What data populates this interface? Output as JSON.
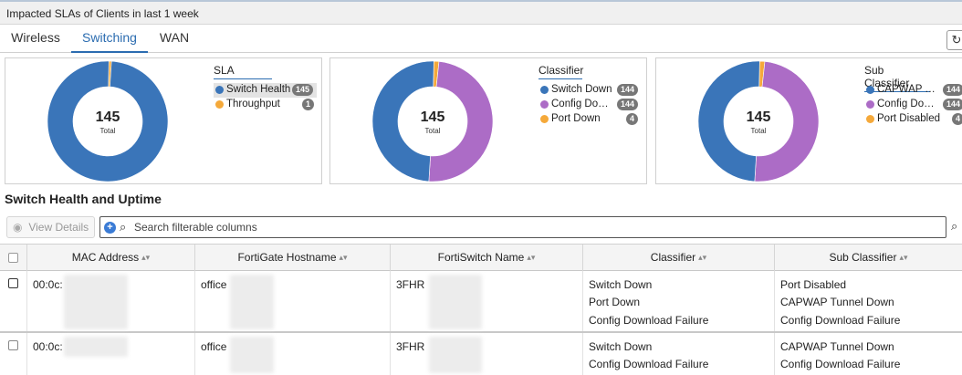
{
  "window": {
    "title": "Impacted SLAs of Clients in last 1 week"
  },
  "tabs": [
    {
      "label": "Wireless",
      "active": false
    },
    {
      "label": "Switching",
      "active": true
    },
    {
      "label": "WAN",
      "active": false
    }
  ],
  "toolbar": {
    "refresh_icon": "refresh-icon"
  },
  "colors": {
    "blue": "#3a75b9",
    "purple": "#ac6cc6",
    "orange": "#f5a93a",
    "accent": "#2b6cb0"
  },
  "charts": [
    {
      "legend_title": "SLA",
      "total": "145",
      "total_label": "Total",
      "items": [
        {
          "label": "Switch Health ...",
          "count": "145",
          "color": "#3a75b9",
          "value": 145
        },
        {
          "label": "Throughput",
          "count": "1",
          "color": "#f5a93a",
          "value": 1
        }
      ]
    },
    {
      "legend_title": "Classifier",
      "total": "145",
      "total_label": "Total",
      "items": [
        {
          "label": "Switch Down",
          "count": "144",
          "color": "#3a75b9",
          "value": 144
        },
        {
          "label": "Config Down...",
          "count": "144",
          "color": "#ac6cc6",
          "value": 144
        },
        {
          "label": "Port Down",
          "count": "4",
          "color": "#f5a93a",
          "value": 4
        }
      ]
    },
    {
      "legend_title": "Sub Classifier",
      "total": "145",
      "total_label": "Total",
      "items": [
        {
          "label": "CAPWAP Tu...",
          "count": "144",
          "color": "#3a75b9",
          "value": 144
        },
        {
          "label": "Config Down...",
          "count": "144",
          "color": "#ac6cc6",
          "value": 144
        },
        {
          "label": "Port Disabled",
          "count": "4",
          "color": "#f5a93a",
          "value": 4
        }
      ]
    }
  ],
  "section": {
    "title": "Switch Health and Uptime"
  },
  "actions": {
    "view_details": "View Details"
  },
  "search": {
    "placeholder": "Search filterable columns"
  },
  "table": {
    "columns": [
      "MAC Address",
      "FortiGate Hostname",
      "FortiSwitch Name",
      "Classifier",
      "Sub Classifier"
    ],
    "rows": [
      {
        "mac": "00:0c:",
        "hostname": "office",
        "switch": "3FHR",
        "classifier": [
          "Switch Down",
          "Port Down",
          "Config Download Failure"
        ],
        "sub_classifier": [
          "Port Disabled",
          "CAPWAP Tunnel Down",
          "Config Download Failure"
        ]
      },
      {
        "mac": "00:0c:",
        "hostname": "office",
        "switch": "3FHR",
        "classifier": [
          "Switch Down",
          "Config Download Failure"
        ],
        "sub_classifier": [
          "CAPWAP Tunnel Down",
          "Config Download Failure"
        ]
      }
    ]
  }
}
